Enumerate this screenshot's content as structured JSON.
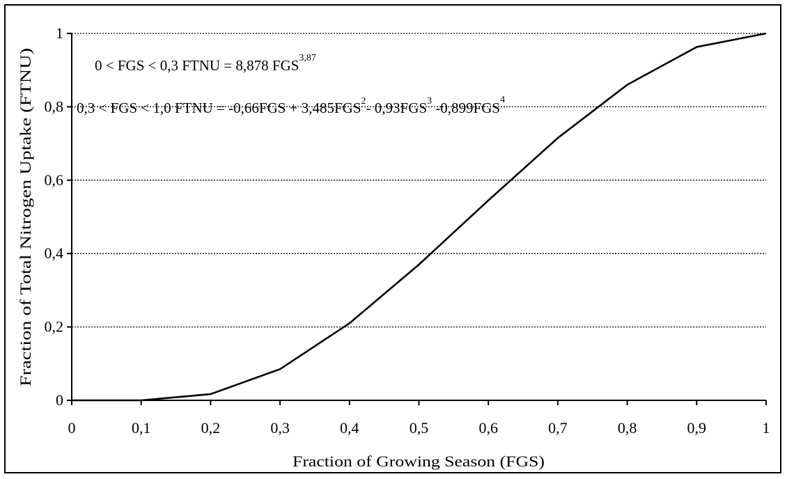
{
  "chart_data": {
    "type": "line",
    "title": "",
    "xlabel": "Fraction of Growing Season  (FGS)",
    "ylabel": "Fraction of Total Nitrogen Uptake  (FTNU)",
    "xlim": [
      0,
      1
    ],
    "ylim": [
      0,
      1
    ],
    "x_ticks": [
      0,
      0.1,
      0.2,
      0.3,
      0.4,
      0.5,
      0.6,
      0.7,
      0.8,
      0.9,
      1
    ],
    "x_tick_labels": [
      "0",
      "0,1",
      "0,2",
      "0,3",
      "0,4",
      "0,5",
      "0,6",
      "0,7",
      "0,8",
      "0,9",
      "1"
    ],
    "y_ticks": [
      0,
      0.2,
      0.4,
      0.6,
      0.8,
      1
    ],
    "y_tick_labels": [
      "0",
      "0,2",
      "0,4",
      "0,6",
      "0,8",
      "1"
    ],
    "grid": "horizontal dotted",
    "series": [
      {
        "x": [
          0,
          0.1,
          0.2,
          0.3,
          0.4,
          0.5,
          0.6,
          0.7,
          0.8,
          0.9,
          1.0
        ],
        "y": [
          0,
          0,
          0.017,
          0.085,
          0.21,
          0.37,
          0.545,
          0.715,
          0.86,
          0.963,
          1.0
        ]
      }
    ],
    "annotations": [
      {
        "text_parts": [
          "0 < FGS < 0,3  FTNU = 8,878 FGS",
          "3,87"
        ]
      },
      {
        "text_parts": [
          "0,3 < FGS < 1,0  FTNU = -0,66FGS + 3,485FGS",
          "2",
          "- 0,93FGS",
          "3",
          " -0,899FGS",
          "4"
        ]
      }
    ],
    "colors": {
      "line": "#000000",
      "grid": "#000000",
      "background": "#ffffff"
    }
  }
}
